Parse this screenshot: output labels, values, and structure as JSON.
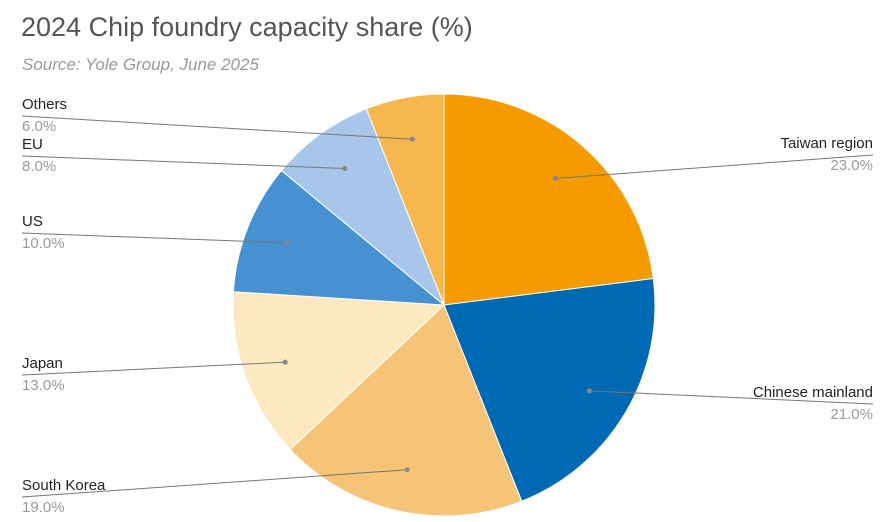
{
  "chart_data": {
    "type": "pie",
    "title": "2024 Chip foundry capacity share (%)",
    "subtitle": "Source: Yole Group, June 2025",
    "slices": [
      {
        "label": "Taiwan region",
        "value": 23.0,
        "display": "23.0%",
        "color": "#F59B00"
      },
      {
        "label": "Chinese mainland",
        "value": 21.0,
        "display": "21.0%",
        "color": "#0069B4"
      },
      {
        "label": "South Korea",
        "value": 19.0,
        "display": "19.0%",
        "color": "#F5C477"
      },
      {
        "label": "Japan",
        "value": 13.0,
        "display": "13.0%",
        "color": "#FDE9C1"
      },
      {
        "label": "US",
        "value": 10.0,
        "display": "10.0%",
        "color": "#4591D1"
      },
      {
        "label": "EU",
        "value": 8.0,
        "display": "8.0%",
        "color": "#A8C6EA"
      },
      {
        "label": "Others",
        "value": 6.0,
        "display": "6.0%",
        "color": "#F6B74E"
      }
    ]
  }
}
